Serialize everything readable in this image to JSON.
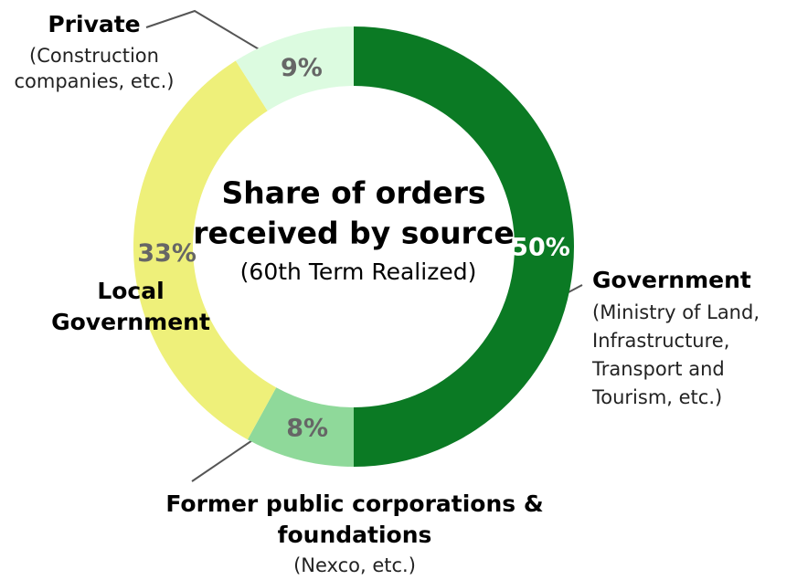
{
  "chart_data": {
    "type": "donut",
    "title": [
      "Share of orders",
      "received by source"
    ],
    "subtitle": "(60th Term Realized)",
    "categories": [
      [
        "Government"
      ],
      [
        "Former public corporations &",
        "foundations"
      ],
      [
        "Local",
        "Government"
      ],
      [
        "Private"
      ]
    ],
    "notes": [
      [
        "(Ministry of Land,",
        "Infrastructure,",
        "Transport and",
        "Tourism, etc.)"
      ],
      [
        "(Nexco, etc.)"
      ],
      [],
      [
        "(Construction",
        "companies, etc.)"
      ]
    ],
    "values": [
      50,
      8,
      33,
      9
    ],
    "value_labels": [
      "50%",
      "8%",
      "33%",
      "9%"
    ],
    "colors": [
      "#0b7a24",
      "#8fd99a",
      "#eef07a",
      "#dcfbe0"
    ]
  }
}
